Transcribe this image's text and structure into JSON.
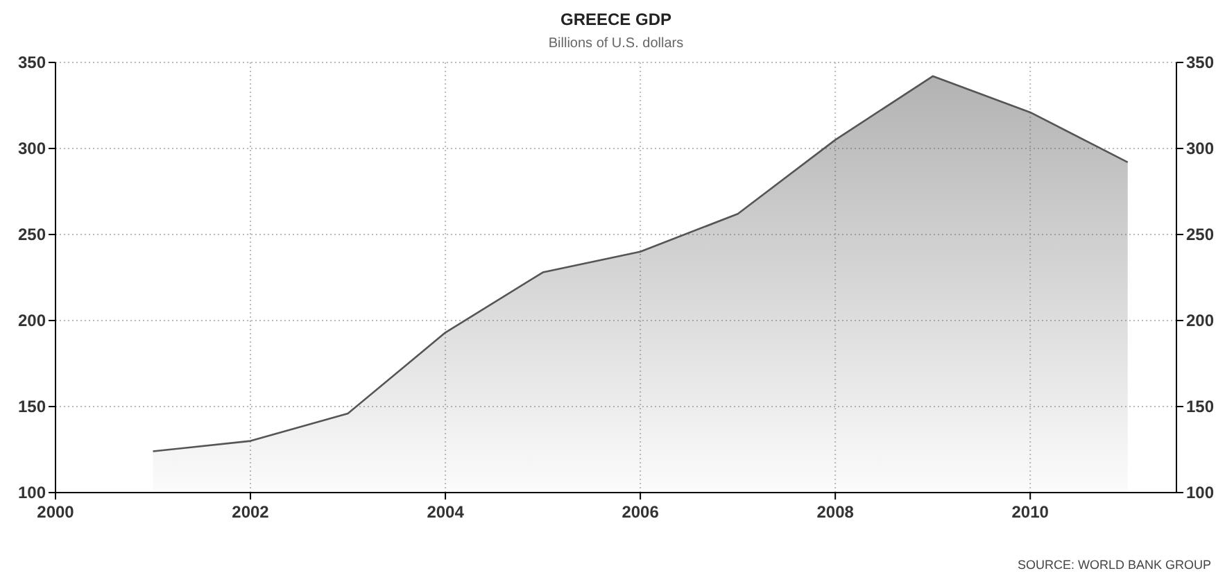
{
  "chart_data": {
    "type": "area",
    "title": "GREECE GDP",
    "subtitle": "Billions of U.S. dollars",
    "x": [
      2001,
      2002,
      2003,
      2004,
      2005,
      2006,
      2007,
      2008,
      2009,
      2010,
      2011
    ],
    "series": [
      {
        "color": "#555555",
        "values": [
          124,
          130,
          146,
          193,
          228,
          240,
          262,
          305,
          342,
          321,
          292
        ]
      }
    ],
    "xlim": [
      2000,
      2011.5
    ],
    "xticks": [
      2000,
      2002,
      2004,
      2006,
      2008,
      2010
    ],
    "ylim": [
      100,
      350
    ],
    "yticks": [
      100,
      150,
      200,
      250,
      300,
      350
    ],
    "y2lim": [
      100,
      350
    ],
    "y2ticks": [
      100,
      150,
      200,
      250,
      300,
      350
    ],
    "grid": true,
    "annotations": [
      "SOURCE: WORLD BANK GROUP"
    ]
  }
}
